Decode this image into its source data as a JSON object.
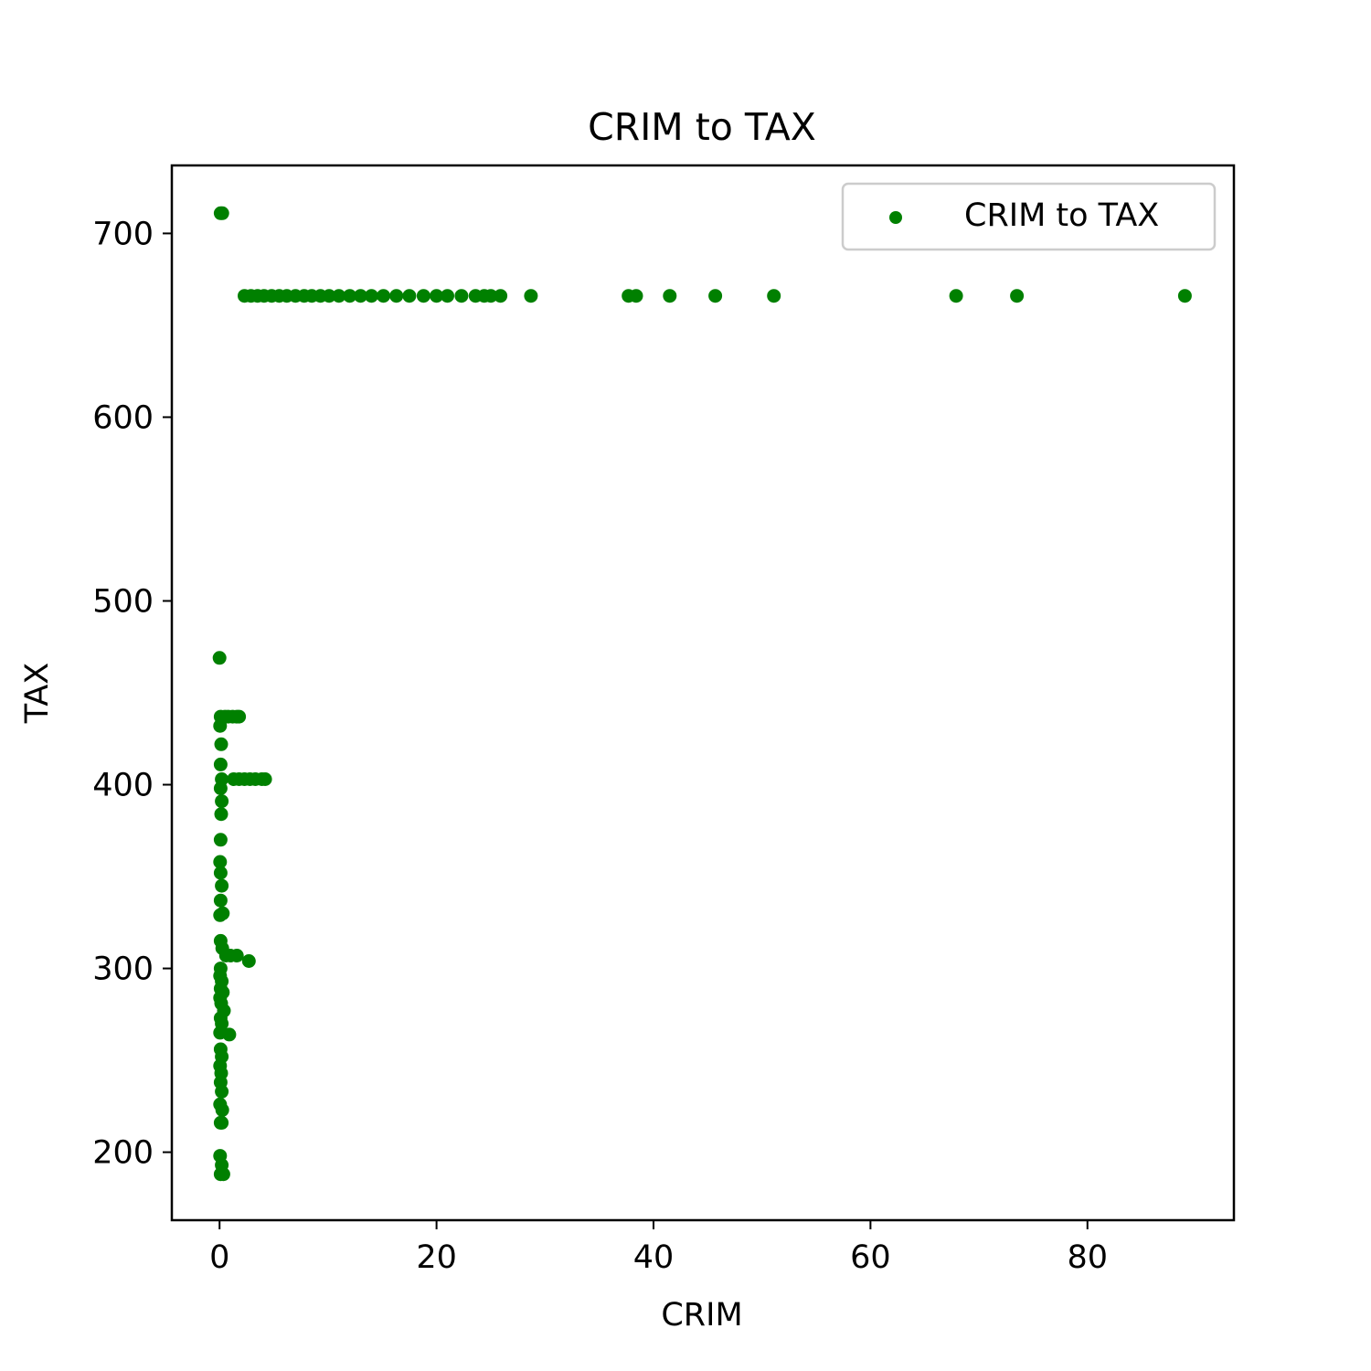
{
  "chart_data": {
    "type": "scatter",
    "title": "CRIM to TAX",
    "xlabel": "CRIM",
    "ylabel": "TAX",
    "xlim": [
      -4.4,
      93.5
    ],
    "ylim": [
      163,
      737
    ],
    "xticks": [
      0,
      20,
      40,
      60,
      80
    ],
    "yticks": [
      200,
      300,
      400,
      500,
      600,
      700
    ],
    "grid": false,
    "legend_position": "top-right",
    "marker_color": "#008000",
    "series": [
      {
        "name": "CRIM to TAX",
        "color": "#008000",
        "points": [
          [
            0.1,
            711
          ],
          [
            0.25,
            711
          ],
          [
            2.3,
            666
          ],
          [
            2.9,
            666
          ],
          [
            3.5,
            666
          ],
          [
            4.1,
            666
          ],
          [
            4.8,
            666
          ],
          [
            5.5,
            666
          ],
          [
            6.2,
            666
          ],
          [
            7.0,
            666
          ],
          [
            7.8,
            666
          ],
          [
            8.5,
            666
          ],
          [
            9.3,
            666
          ],
          [
            10.1,
            666
          ],
          [
            11.0,
            666
          ],
          [
            12.0,
            666
          ],
          [
            13.0,
            666
          ],
          [
            14.0,
            666
          ],
          [
            15.1,
            666
          ],
          [
            16.3,
            666
          ],
          [
            17.5,
            666
          ],
          [
            18.8,
            666
          ],
          [
            20.0,
            666
          ],
          [
            21.0,
            666
          ],
          [
            22.3,
            666
          ],
          [
            23.6,
            666
          ],
          [
            24.4,
            666
          ],
          [
            25.0,
            666
          ],
          [
            25.9,
            666
          ],
          [
            28.7,
            666
          ],
          [
            37.7,
            666
          ],
          [
            38.4,
            666
          ],
          [
            41.5,
            666
          ],
          [
            45.7,
            666
          ],
          [
            51.1,
            666
          ],
          [
            67.9,
            666
          ],
          [
            73.5,
            666
          ],
          [
            88.98,
            666
          ],
          [
            0.0,
            469
          ],
          [
            0.1,
            437
          ],
          [
            0.5,
            437
          ],
          [
            0.8,
            437
          ],
          [
            1.2,
            437
          ],
          [
            1.6,
            437
          ],
          [
            1.8,
            437
          ],
          [
            0.05,
            432
          ],
          [
            0.15,
            422
          ],
          [
            0.1,
            411
          ],
          [
            0.2,
            403
          ],
          [
            1.3,
            403
          ],
          [
            1.8,
            403
          ],
          [
            2.3,
            403
          ],
          [
            2.8,
            403
          ],
          [
            3.3,
            403
          ],
          [
            3.9,
            403
          ],
          [
            4.2,
            403
          ],
          [
            0.1,
            398
          ],
          [
            0.2,
            391
          ],
          [
            0.15,
            384
          ],
          [
            0.1,
            370
          ],
          [
            0.05,
            358
          ],
          [
            0.1,
            352
          ],
          [
            0.2,
            345
          ],
          [
            0.1,
            337
          ],
          [
            0.3,
            330
          ],
          [
            0.05,
            329
          ],
          [
            0.1,
            315
          ],
          [
            0.25,
            311
          ],
          [
            0.6,
            307
          ],
          [
            1.0,
            307
          ],
          [
            1.6,
            307
          ],
          [
            2.7,
            304
          ],
          [
            0.1,
            300
          ],
          [
            0.05,
            296
          ],
          [
            0.2,
            293
          ],
          [
            0.1,
            289
          ],
          [
            0.3,
            287
          ],
          [
            0.05,
            284
          ],
          [
            0.15,
            281
          ],
          [
            0.4,
            277
          ],
          [
            0.1,
            273
          ],
          [
            0.2,
            270
          ],
          [
            0.05,
            265
          ],
          [
            0.9,
            264
          ],
          [
            0.1,
            256
          ],
          [
            0.2,
            252
          ],
          [
            0.05,
            247
          ],
          [
            0.15,
            243
          ],
          [
            0.1,
            238
          ],
          [
            0.2,
            233
          ],
          [
            0.05,
            226
          ],
          [
            0.25,
            223
          ],
          [
            0.1,
            216
          ],
          [
            0.2,
            216
          ],
          [
            0.05,
            198
          ],
          [
            0.2,
            193
          ],
          [
            0.1,
            188
          ],
          [
            0.35,
            188
          ]
        ]
      }
    ]
  }
}
